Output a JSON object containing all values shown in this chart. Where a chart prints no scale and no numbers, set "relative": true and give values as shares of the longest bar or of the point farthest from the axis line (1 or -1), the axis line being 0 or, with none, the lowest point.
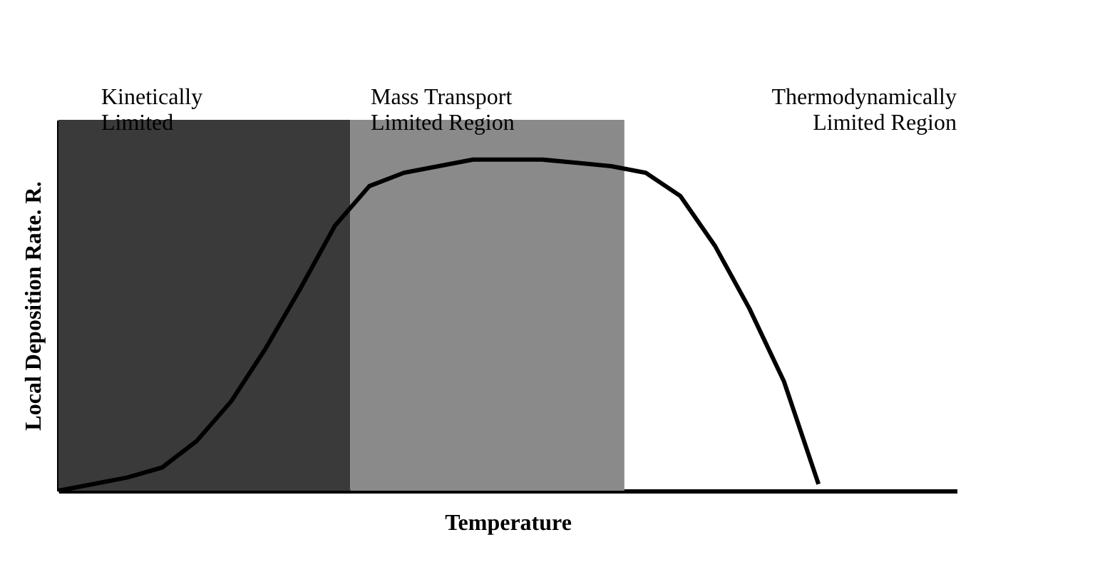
{
  "chart_data": {
    "type": "line",
    "relative": true,
    "xlabel": "Temperature",
    "ylabel": "Local Deposition Rate. R.",
    "categories": [
      null,
      null,
      null,
      null,
      null,
      null,
      null,
      null,
      null,
      null,
      null,
      null,
      null,
      null,
      null,
      null,
      null,
      null,
      null,
      null,
      null,
      null,
      null,
      null,
      null,
      null,
      null
    ],
    "series": [
      {
        "color": "#000000",
        "values": [
          0,
          0.02,
          0.04,
          0.07,
          0.15,
          0.27,
          0.43,
          0.61,
          0.8,
          0.92,
          0.96,
          0.98,
          1,
          1,
          1,
          0.99,
          0.98,
          0.96,
          0.89,
          0.74,
          0.55,
          0.33,
          0.02,
          null,
          null,
          null,
          null
        ]
      }
    ],
    "annotations": [
      "Kinetically\nLimited",
      "Mass Transport\nLimited Region",
      "Thermodynamically\nLimited Region"
    ],
    "grid": false,
    "legend": false,
    "marker": "none",
    "line_style": "solid",
    "tick_labels": false
  }
}
